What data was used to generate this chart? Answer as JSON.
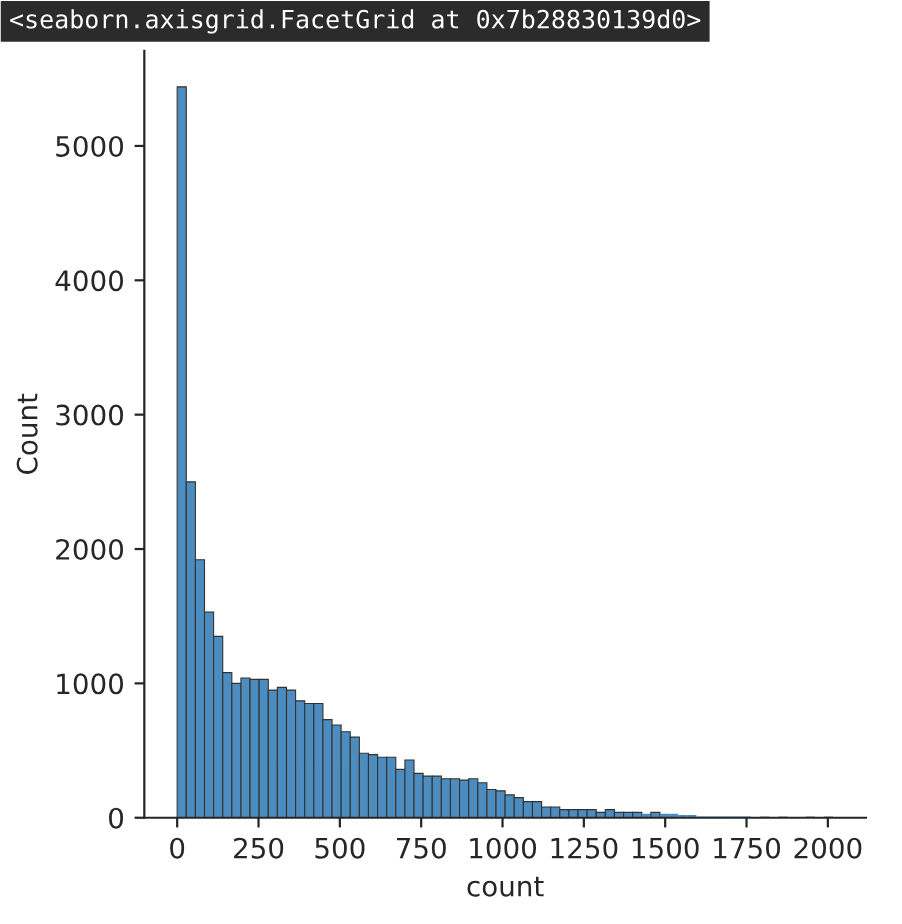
{
  "chart_data": {
    "type": "histogram",
    "xlabel": "count",
    "ylabel": "Count",
    "annotations": [
      "<seaborn.axisgrid.FacetGrid at 0x7b28830139d0>"
    ],
    "bins": [
      0,
      28,
      56,
      84,
      112,
      140,
      168,
      196,
      224,
      252,
      280,
      308,
      336,
      364,
      392,
      420,
      448,
      476,
      504,
      532,
      560,
      588,
      616,
      644,
      672,
      700,
      728,
      756,
      784,
      812,
      840,
      868,
      896,
      924,
      952,
      980,
      1008,
      1036,
      1064,
      1092,
      1120,
      1148,
      1176,
      1204,
      1232,
      1260,
      1288,
      1316,
      1344,
      1372,
      1400,
      1428,
      1456,
      1484,
      1512,
      1540,
      1568,
      1596,
      1624,
      1652,
      1680,
      1708,
      1736,
      1764,
      1792,
      1820,
      1848,
      1876,
      1904,
      1932,
      1960,
      1988,
      2016
    ],
    "values": [
      5440,
      2500,
      1920,
      1530,
      1350,
      1080,
      1000,
      1040,
      1030,
      1030,
      950,
      970,
      950,
      870,
      850,
      850,
      730,
      690,
      640,
      600,
      480,
      470,
      450,
      450,
      360,
      430,
      330,
      310,
      310,
      290,
      290,
      280,
      290,
      260,
      210,
      200,
      170,
      150,
      120,
      120,
      80,
      80,
      60,
      60,
      60,
      60,
      40,
      60,
      40,
      40,
      40,
      30,
      40,
      30,
      30,
      20,
      20,
      10,
      10,
      10,
      10,
      10,
      10,
      0,
      10,
      0,
      10,
      0,
      0,
      10,
      0,
      10
    ],
    "color": "#4c8cbf",
    "xlim": [
      -101,
      2117
    ],
    "xticks": [
      0,
      250,
      500,
      750,
      1000,
      1250,
      1500,
      1750,
      2000
    ],
    "ylim": [
      0,
      5708
    ],
    "yticks": [
      0,
      1000,
      2000,
      3000,
      4000,
      5000
    ],
    "grid": false,
    "legend": false
  }
}
